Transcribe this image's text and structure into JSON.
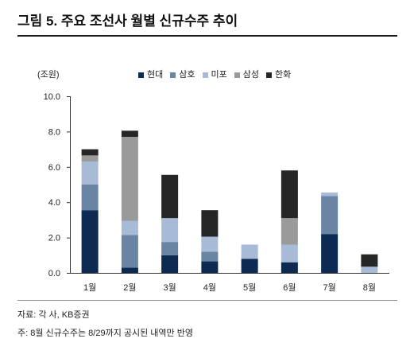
{
  "chart_data": {
    "type": "bar",
    "stacked": true,
    "title": "그림 5. 주요 조선사 월별 신규수주 추이",
    "xlabel": "",
    "ylabel": "(조원)",
    "categories": [
      "1월",
      "2월",
      "3월",
      "4월",
      "5월",
      "6월",
      "7월",
      "8월"
    ],
    "series": [
      {
        "name": "현대",
        "color": "#0c2a52",
        "values": [
          3.55,
          0.3,
          1.0,
          0.65,
          0.8,
          0.6,
          2.2,
          0
        ]
      },
      {
        "name": "삼호",
        "color": "#6a84a4",
        "values": [
          1.45,
          1.85,
          0.75,
          0.55,
          0,
          0,
          2.15,
          0
        ]
      },
      {
        "name": "미포",
        "color": "#a8bbd6",
        "values": [
          1.3,
          0.8,
          1.35,
          0.85,
          0.8,
          1.0,
          0.2,
          0.35
        ]
      },
      {
        "name": "삼성",
        "color": "#9a9a9a",
        "values": [
          0.35,
          4.75,
          0,
          0,
          0,
          1.5,
          0,
          0
        ]
      },
      {
        "name": "한화",
        "color": "#262626",
        "values": [
          0.35,
          0.35,
          2.45,
          1.5,
          0,
          2.7,
          0,
          0.7
        ]
      }
    ],
    "ylim": [
      0,
      10
    ],
    "yticks": [
      "0.0",
      "2.0",
      "4.0",
      "6.0",
      "8.0",
      "10.0"
    ],
    "grid": false,
    "legend": "top"
  },
  "source": "자료: 각 사, KB증권",
  "note": "주: 8월 신규수주는 8/29까지 공시된 내역만 반영"
}
